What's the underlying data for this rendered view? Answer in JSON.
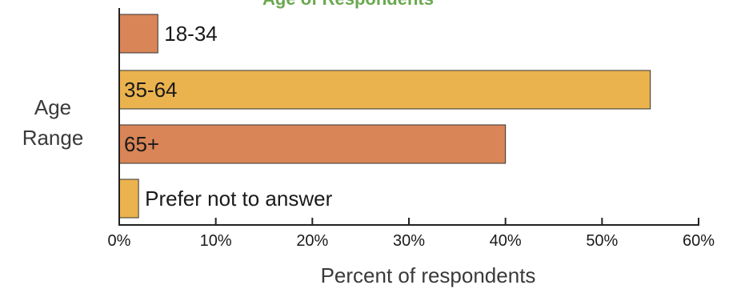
{
  "chart_data": {
    "type": "bar",
    "orientation": "horizontal",
    "title": "Age of Respondents",
    "categories": [
      "18-34",
      "35-64",
      "65+",
      "Prefer not to answer"
    ],
    "values": [
      4,
      55,
      40,
      2
    ],
    "value_unit": "%",
    "xlabel": "Percent of respondents",
    "ylabel_lines": [
      "Age",
      "Range"
    ],
    "xlim": [
      0,
      60
    ],
    "xticks": [
      "0%",
      "10%",
      "20%",
      "30%",
      "40%",
      "50%",
      "60%"
    ],
    "bar_colors": [
      "#d98557",
      "#ebb34e",
      "#d98557",
      "#ebb34e"
    ],
    "title_color": "#6aa84f",
    "grid": false,
    "legend": "none"
  }
}
